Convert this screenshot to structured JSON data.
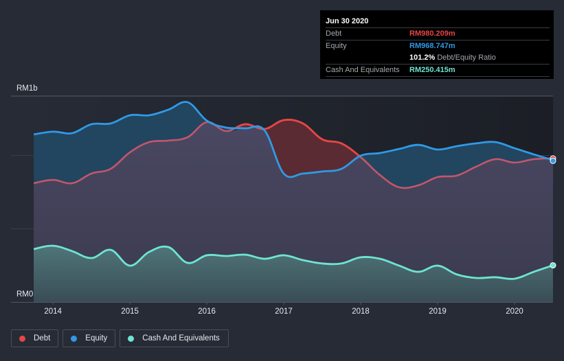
{
  "tooltip": {
    "date": "Jun 30 2020",
    "rows": [
      {
        "label": "Debt",
        "value": "RM980.209m",
        "color": "#e84545"
      },
      {
        "label": "Equity",
        "value": "RM968.747m",
        "color": "#2f9ae6"
      }
    ],
    "ratio_value": "101.2%",
    "ratio_label": "Debt/Equity Ratio",
    "cash": {
      "label": "Cash And Equivalents",
      "value": "RM250.415m",
      "color": "#6ee5d0"
    }
  },
  "legend": [
    {
      "label": "Debt",
      "color": "#e84545"
    },
    {
      "label": "Equity",
      "color": "#2f9ae6"
    },
    {
      "label": "Cash And Equivalents",
      "color": "#6ee5d0"
    }
  ],
  "chart_data": {
    "type": "area",
    "title": "",
    "xlabel": "",
    "ylabel": "",
    "y_tick_labels": {
      "top": "RM1b",
      "bottom": "RM0"
    },
    "ylim": [
      0,
      1406
    ],
    "xlim": [
      2013.74,
      2020.5
    ],
    "x_ticks": [
      "2014",
      "2015",
      "2016",
      "2017",
      "2018",
      "2019",
      "2020"
    ],
    "x_tick_values": [
      2014,
      2015,
      2016,
      2017,
      2018,
      2019,
      2020
    ],
    "units": "RM millions",
    "x": [
      2013.75,
      2014.0,
      2014.25,
      2014.5,
      2014.75,
      2015.0,
      2015.25,
      2015.5,
      2015.75,
      2016.0,
      2016.25,
      2016.5,
      2016.75,
      2017.0,
      2017.25,
      2017.5,
      2017.75,
      2018.0,
      2018.25,
      2018.5,
      2018.75,
      2019.0,
      2019.25,
      2019.5,
      2019.75,
      2020.0,
      2020.25,
      2020.5
    ],
    "series": [
      {
        "name": "Debt",
        "color": "#e84545",
        "muted_color": "#c4566b",
        "values": [
          811,
          834,
          811,
          877,
          909,
          1022,
          1092,
          1102,
          1125,
          1228,
          1167,
          1214,
          1181,
          1242,
          1219,
          1111,
          1083,
          989,
          867,
          783,
          797,
          853,
          863,
          924,
          975,
          952,
          975,
          980.209
        ]
      },
      {
        "name": "Equity",
        "color": "#2f9ae6",
        "values": [
          1144,
          1163,
          1153,
          1214,
          1219,
          1275,
          1275,
          1313,
          1364,
          1238,
          1191,
          1186,
          1172,
          877,
          877,
          891,
          909,
          999,
          1017,
          1045,
          1073,
          1041,
          1064,
          1083,
          1092,
          1050,
          1008,
          968.747
        ]
      },
      {
        "name": "Cash And Equivalents",
        "color": "#6ee5d0",
        "values": [
          361,
          384,
          347,
          300,
          356,
          248,
          342,
          375,
          267,
          319,
          314,
          323,
          295,
          319,
          286,
          263,
          263,
          305,
          295,
          248,
          206,
          248,
          188,
          164,
          169,
          159,
          206,
          250.415
        ]
      }
    ],
    "grid": true,
    "legend_position": "bottom-left"
  }
}
